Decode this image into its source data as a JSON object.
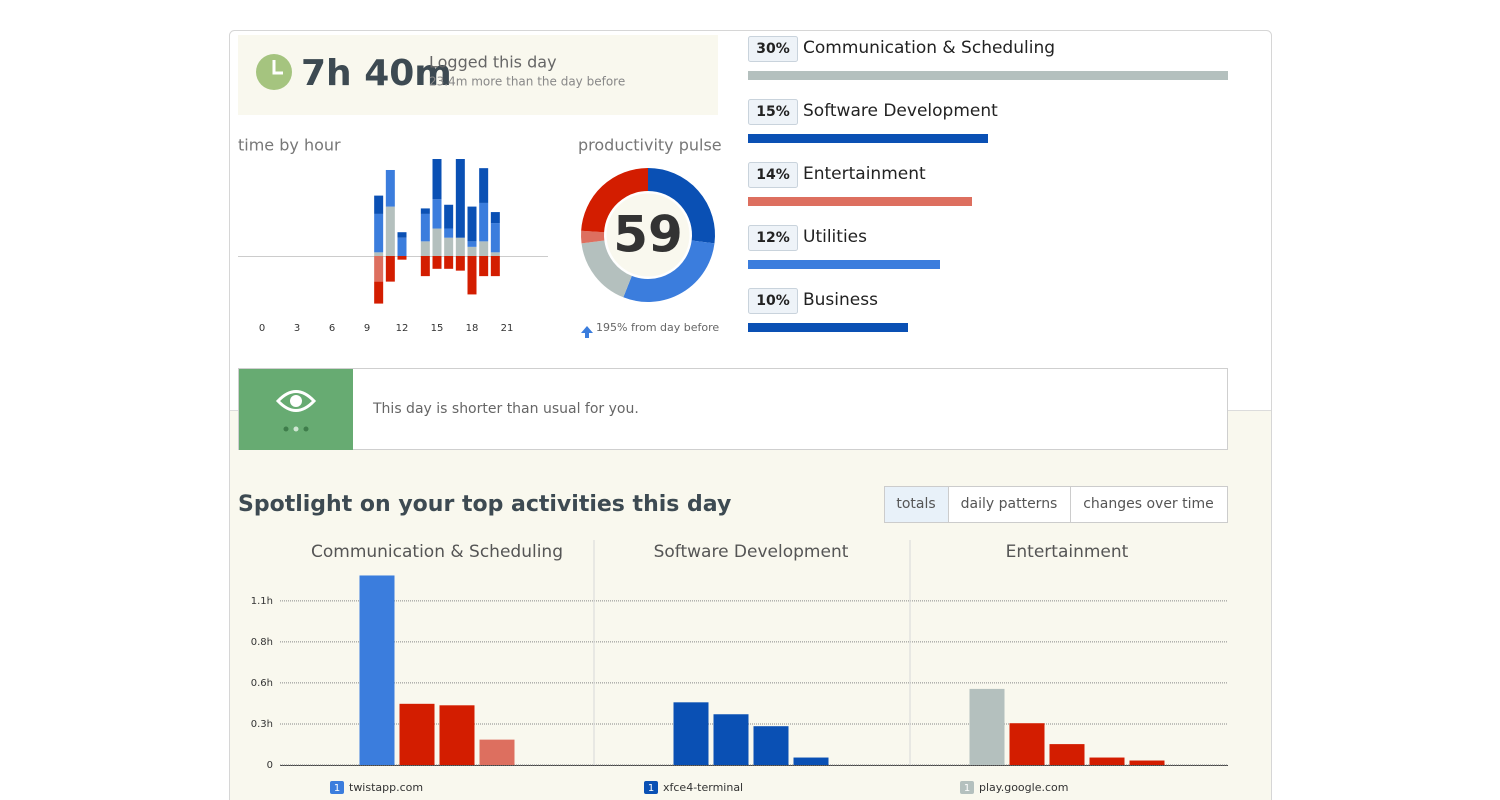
{
  "summary": {
    "time": "7h 40m",
    "label": "Logged this day",
    "delta": "23.4m more than the day before"
  },
  "insight": {
    "text": "This day is shorter than usual for you."
  },
  "spotlight": {
    "title": "Spotlight on your top activities this day",
    "tabs": [
      "totals",
      "daily patterns",
      "changes over time"
    ],
    "active_tab": 0
  },
  "chart_data": [
    {
      "type": "stacked-bar",
      "title": "time by hour",
      "x": [
        10,
        11,
        12,
        14,
        15,
        16,
        17,
        18,
        19,
        20
      ],
      "xticks": [
        0,
        3,
        6,
        9,
        12,
        15,
        18,
        21
      ],
      "series": [
        {
          "color": "#b4c0be",
          "values": [
            2,
            27,
            0,
            8,
            15,
            10,
            10,
            5,
            8,
            2
          ]
        },
        {
          "color": "#3b7ddd",
          "values": [
            21,
            20,
            10,
            15,
            16,
            5,
            0,
            3,
            21,
            16
          ]
        },
        {
          "color": "#0a50b4",
          "values": [
            10,
            0,
            3,
            3,
            22,
            13,
            43,
            19,
            19,
            6
          ]
        },
        {
          "color": "#dd6f5f",
          "values": [
            -14,
            0,
            0,
            0,
            0,
            0,
            0,
            0,
            0,
            0
          ]
        },
        {
          "color": "#d31d00",
          "values": [
            -12,
            -14,
            -2,
            -11,
            -7,
            -7,
            -8,
            -21,
            -11,
            -11
          ]
        }
      ]
    },
    {
      "type": "donut",
      "title": "productivity pulse",
      "value": 59,
      "values": [
        27,
        29,
        17,
        3,
        24
      ],
      "colors": [
        "#0a50b4",
        "#3b7ddd",
        "#b4c0be",
        "#dd6f5f",
        "#d31d00"
      ],
      "note": "195% from day before"
    },
    {
      "type": "hbar",
      "categories": [
        "Communication & Scheduling",
        "Software Development",
        "Entertainment",
        "Utilities",
        "Business"
      ],
      "values": [
        30,
        15,
        14,
        12,
        10
      ],
      "value_labels": [
        "30%",
        "15%",
        "14%",
        "12%",
        "10%"
      ],
      "colors": [
        "#b4c0be",
        "#0a50b4",
        "#dd6f5f",
        "#3b7ddd",
        "#0a50b4"
      ]
    },
    {
      "type": "grouped-bar",
      "ylim": [
        0,
        1.3
      ],
      "yticks": [
        0,
        {
          "value": 0.275,
          "label": "0.3h"
        },
        {
          "value": 0.55,
          "label": "0.6h"
        },
        {
          "value": 0.825,
          "label": "0.8h"
        },
        {
          "value": 1.1,
          "label": "1.1h"
        }
      ],
      "panels": [
        {
          "title": "Communication & Scheduling",
          "values": [
            1.27,
            0.41,
            0.4,
            0.17
          ],
          "colors": [
            "#3b7ddd",
            "#d31d00",
            "#d31d00",
            "#dd6f5f"
          ],
          "rank": 1,
          "top_item": "twistapp.com"
        },
        {
          "title": "Software Development",
          "values": [
            0.42,
            0.34,
            0.26,
            0.05
          ],
          "colors": [
            "#0a50b4",
            "#0a50b4",
            "#0a50b4",
            "#0a50b4"
          ],
          "rank": 1,
          "top_item": "xfce4-terminal"
        },
        {
          "title": "Entertainment",
          "values": [
            0.51,
            0.28,
            0.14,
            0.05,
            0.03
          ],
          "colors": [
            "#b4c0be",
            "#d31d00",
            "#d31d00",
            "#d31d00",
            "#d31d00"
          ],
          "rank": 1,
          "top_item": "play.google.com"
        }
      ]
    }
  ]
}
